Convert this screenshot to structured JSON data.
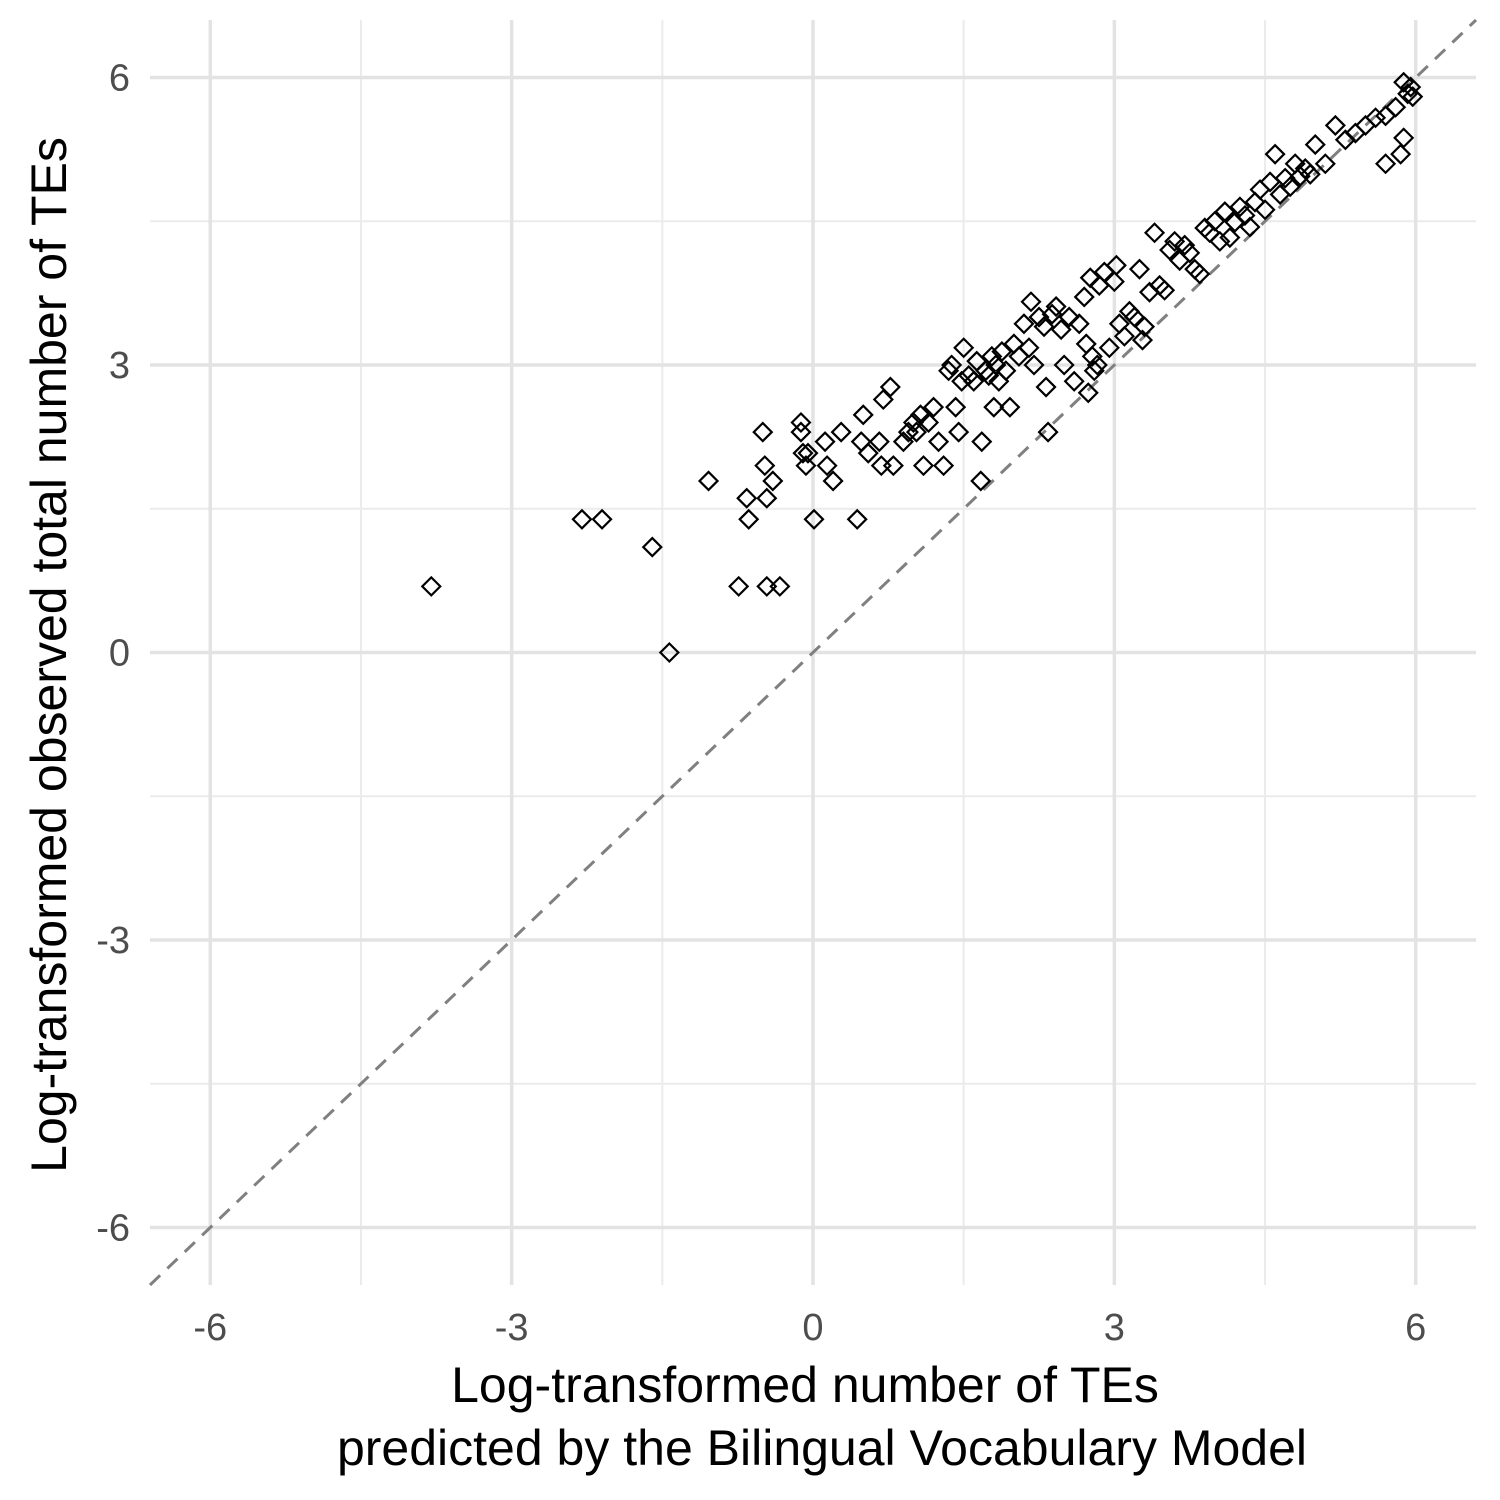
{
  "chart_data": {
    "type": "scatter",
    "title": "",
    "xlabel": [
      "Log-transformed number of TEs",
      "predicted by the Bilingual Vocabulary Model"
    ],
    "ylabel": "Log-transformed observed total number of TEs",
    "xlim": [
      -6.6,
      6.6
    ],
    "ylim": [
      -6.6,
      6.6
    ],
    "x_ticks": [
      -6,
      -3,
      0,
      3,
      6
    ],
    "y_ticks": [
      -6,
      -3,
      0,
      3,
      6
    ],
    "x_tick_labels": [
      "-6",
      "-3",
      "0",
      "3",
      "6"
    ],
    "y_tick_labels": [
      "-6",
      "-3",
      "0",
      "3",
      "6"
    ],
    "grid": true,
    "reference_line": {
      "type": "identity",
      "style": "dashed",
      "color": "#808080"
    },
    "marker": {
      "shape": "diamond-open",
      "color": "#000000"
    },
    "points": [
      [
        -3.8,
        0.69
      ],
      [
        -2.3,
        1.39
      ],
      [
        -2.1,
        1.39
      ],
      [
        -1.6,
        1.1
      ],
      [
        -1.43,
        0.0
      ],
      [
        -1.04,
        1.79
      ],
      [
        -0.74,
        0.69
      ],
      [
        -0.66,
        1.61
      ],
      [
        -0.64,
        1.39
      ],
      [
        -0.5,
        2.3
      ],
      [
        -0.48,
        1.95
      ],
      [
        -0.46,
        1.61
      ],
      [
        -0.46,
        0.69
      ],
      [
        -0.4,
        1.79
      ],
      [
        -0.33,
        0.69
      ],
      [
        -0.12,
        2.4
      ],
      [
        -0.12,
        2.3
      ],
      [
        -0.1,
        2.08
      ],
      [
        -0.07,
        1.95
      ],
      [
        -0.05,
        2.08
      ],
      [
        0.01,
        1.39
      ],
      [
        0.12,
        2.2
      ],
      [
        0.14,
        1.95
      ],
      [
        0.2,
        1.79
      ],
      [
        0.28,
        2.3
      ],
      [
        0.44,
        1.39
      ],
      [
        0.48,
        2.2
      ],
      [
        0.5,
        2.48
      ],
      [
        0.55,
        2.08
      ],
      [
        0.66,
        2.2
      ],
      [
        0.68,
        1.95
      ],
      [
        0.7,
        2.64
      ],
      [
        0.77,
        2.77
      ],
      [
        0.8,
        1.95
      ],
      [
        0.9,
        2.2
      ],
      [
        0.95,
        2.3
      ],
      [
        1.0,
        2.4
      ],
      [
        1.03,
        2.3
      ],
      [
        1.07,
        2.48
      ],
      [
        1.1,
        1.95
      ],
      [
        1.15,
        2.4
      ],
      [
        1.2,
        2.56
      ],
      [
        1.25,
        2.2
      ],
      [
        1.3,
        1.95
      ],
      [
        1.35,
        2.94
      ],
      [
        1.38,
        3.0
      ],
      [
        1.42,
        2.56
      ],
      [
        1.45,
        2.3
      ],
      [
        1.48,
        2.83
      ],
      [
        1.5,
        3.18
      ],
      [
        1.55,
        2.89
      ],
      [
        1.6,
        2.83
      ],
      [
        1.63,
        3.04
      ],
      [
        1.67,
        1.79
      ],
      [
        1.68,
        2.2
      ],
      [
        1.72,
        2.94
      ],
      [
        1.75,
        2.89
      ],
      [
        1.78,
        3.09
      ],
      [
        1.8,
        2.56
      ],
      [
        1.82,
        3.0
      ],
      [
        1.85,
        2.83
      ],
      [
        1.88,
        3.14
      ],
      [
        1.92,
        2.94
      ],
      [
        1.96,
        2.56
      ],
      [
        2.0,
        3.22
      ],
      [
        2.05,
        3.09
      ],
      [
        2.1,
        3.43
      ],
      [
        2.15,
        3.18
      ],
      [
        2.17,
        3.66
      ],
      [
        2.2,
        3.0
      ],
      [
        2.25,
        3.5
      ],
      [
        2.3,
        3.4
      ],
      [
        2.32,
        2.77
      ],
      [
        2.34,
        2.3
      ],
      [
        2.38,
        3.53
      ],
      [
        2.42,
        3.61
      ],
      [
        2.47,
        3.37
      ],
      [
        2.5,
        3.0
      ],
      [
        2.55,
        3.5
      ],
      [
        2.6,
        2.83
      ],
      [
        2.65,
        3.43
      ],
      [
        2.7,
        3.71
      ],
      [
        2.72,
        3.22
      ],
      [
        2.74,
        2.71
      ],
      [
        2.76,
        3.91
      ],
      [
        2.78,
        3.09
      ],
      [
        2.8,
        2.94
      ],
      [
        2.83,
        3.0
      ],
      [
        2.85,
        3.83
      ],
      [
        2.9,
        3.97
      ],
      [
        2.95,
        3.18
      ],
      [
        3.0,
        3.87
      ],
      [
        3.02,
        4.04
      ],
      [
        3.05,
        3.43
      ],
      [
        3.1,
        3.3
      ],
      [
        3.15,
        3.56
      ],
      [
        3.2,
        3.5
      ],
      [
        3.25,
        4.0
      ],
      [
        3.28,
        3.26
      ],
      [
        3.3,
        3.4
      ],
      [
        3.35,
        3.76
      ],
      [
        3.4,
        4.38
      ],
      [
        3.45,
        3.83
      ],
      [
        3.5,
        3.78
      ],
      [
        3.55,
        4.2
      ],
      [
        3.6,
        4.29
      ],
      [
        3.65,
        4.09
      ],
      [
        3.7,
        4.25
      ],
      [
        3.75,
        4.17
      ],
      [
        3.8,
        4.0
      ],
      [
        3.85,
        3.95
      ],
      [
        3.9,
        4.43
      ],
      [
        3.95,
        4.38
      ],
      [
        4.0,
        4.5
      ],
      [
        4.05,
        4.29
      ],
      [
        4.1,
        4.6
      ],
      [
        4.15,
        4.33
      ],
      [
        4.2,
        4.49
      ],
      [
        4.25,
        4.65
      ],
      [
        4.3,
        4.56
      ],
      [
        4.35,
        4.44
      ],
      [
        4.4,
        4.7
      ],
      [
        4.45,
        4.83
      ],
      [
        4.5,
        4.62
      ],
      [
        4.55,
        4.91
      ],
      [
        4.6,
        5.2
      ],
      [
        4.65,
        4.78
      ],
      [
        4.7,
        4.95
      ],
      [
        4.75,
        4.86
      ],
      [
        4.8,
        5.1
      ],
      [
        4.85,
        4.97
      ],
      [
        4.9,
        5.05
      ],
      [
        4.95,
        4.99
      ],
      [
        5.0,
        5.3
      ],
      [
        5.1,
        5.1
      ],
      [
        5.2,
        5.5
      ],
      [
        5.3,
        5.35
      ],
      [
        5.4,
        5.42
      ],
      [
        5.5,
        5.5
      ],
      [
        5.6,
        5.58
      ],
      [
        5.7,
        5.6
      ],
      [
        5.7,
        5.1
      ],
      [
        5.8,
        5.69
      ],
      [
        5.85,
        5.2
      ],
      [
        5.88,
        5.37
      ],
      [
        5.88,
        5.95
      ],
      [
        5.92,
        5.83
      ],
      [
        5.95,
        5.9
      ],
      [
        5.97,
        5.8
      ]
    ]
  }
}
